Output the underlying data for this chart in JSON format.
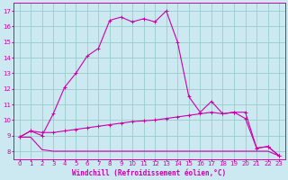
{
  "xlabel": "Windchill (Refroidissement éolien,°C)",
  "background_color": "#cce8f0",
  "grid_color": "#99cccc",
  "line_color": "#cc00aa",
  "xlim": [
    -0.5,
    23.5
  ],
  "ylim": [
    7.5,
    17.5
  ],
  "xticks": [
    0,
    1,
    2,
    3,
    4,
    5,
    6,
    7,
    8,
    9,
    10,
    11,
    12,
    13,
    14,
    15,
    16,
    17,
    18,
    19,
    20,
    21,
    22,
    23
  ],
  "yticks": [
    8,
    9,
    10,
    11,
    12,
    13,
    14,
    15,
    16,
    17
  ],
  "curve_x": [
    0,
    1,
    2,
    3,
    4,
    5,
    6,
    7,
    8,
    9,
    10,
    11,
    12,
    13,
    14,
    15,
    16,
    17,
    18,
    19,
    20,
    21,
    22,
    23
  ],
  "curve_y": [
    8.9,
    9.3,
    9.0,
    10.4,
    12.1,
    13.0,
    14.1,
    14.6,
    16.4,
    16.6,
    16.3,
    16.5,
    16.3,
    17.0,
    15.0,
    11.5,
    10.5,
    11.2,
    10.4,
    10.5,
    10.1,
    8.2,
    8.3,
    7.7
  ],
  "mid_x": [
    0,
    1,
    2,
    3,
    4,
    5,
    6,
    7,
    8,
    9,
    10,
    11,
    12,
    13,
    14,
    15,
    16,
    17,
    18,
    19,
    20,
    21,
    22,
    23
  ],
  "mid_y": [
    8.9,
    9.3,
    9.2,
    9.2,
    9.3,
    9.4,
    9.5,
    9.6,
    9.7,
    9.8,
    9.9,
    9.95,
    10.0,
    10.1,
    10.2,
    10.3,
    10.4,
    10.5,
    10.4,
    10.5,
    10.5,
    8.2,
    8.3,
    7.7
  ],
  "flat_x": [
    0,
    1,
    2,
    3,
    4,
    5,
    6,
    7,
    8,
    9,
    10,
    11,
    12,
    13,
    14,
    15,
    16,
    17,
    18,
    19,
    20,
    21,
    22,
    23
  ],
  "flat_y": [
    8.9,
    8.9,
    8.1,
    8.0,
    8.0,
    8.0,
    8.0,
    8.0,
    8.0,
    8.0,
    8.0,
    8.0,
    8.0,
    8.0,
    8.0,
    8.0,
    8.0,
    8.0,
    8.0,
    8.0,
    8.0,
    8.0,
    8.0,
    7.7
  ]
}
